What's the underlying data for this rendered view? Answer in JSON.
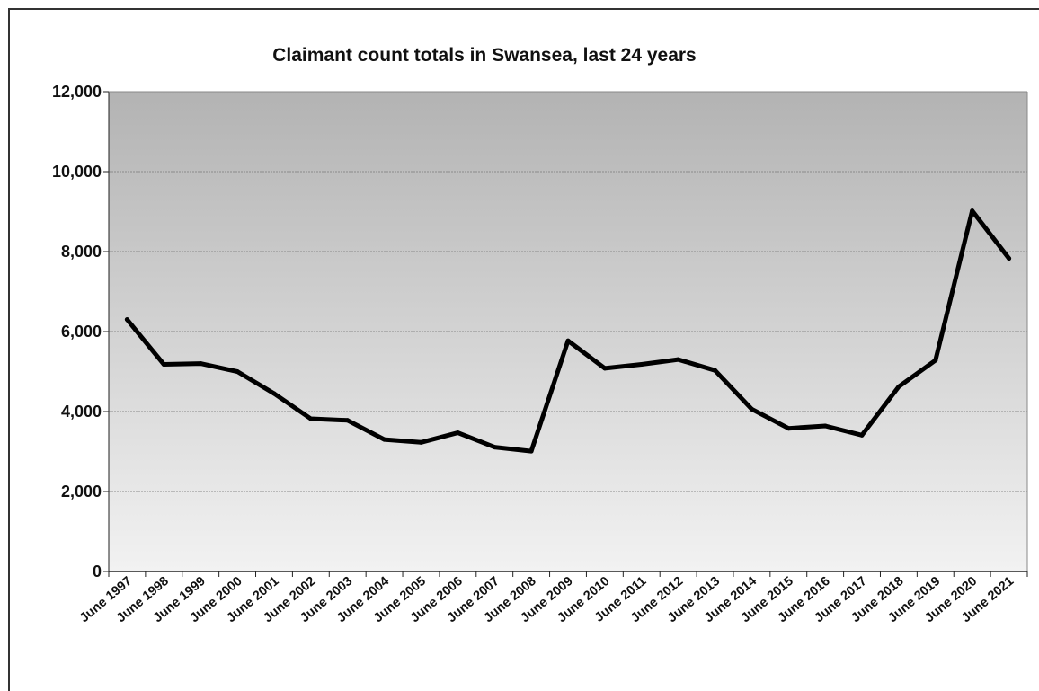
{
  "chart_data": {
    "type": "line",
    "title": "Claimant count totals in Swansea, last 24 years",
    "xlabel": "",
    "ylabel": "",
    "ylim": [
      0,
      12000
    ],
    "yticks": [
      "0",
      "2,000",
      "4,000",
      "6,000",
      "8,000",
      "10,000",
      "12,000"
    ],
    "ytick_values": [
      0,
      2000,
      4000,
      6000,
      8000,
      10000,
      12000
    ],
    "categories": [
      "June 1997",
      "June 1998",
      "June 1999",
      "June 2000",
      "June 2001",
      "June 2002",
      "June 2003",
      "June 2004",
      "June 2005",
      "June 2006",
      "June 2007",
      "June 2008",
      "June 2009",
      "June 2010",
      "June 2011",
      "June 2012",
      "June 2013",
      "June 2014",
      "June 2015",
      "June 2016",
      "June 2017",
      "June 2018",
      "June 2019",
      "June 2020",
      "June 2021"
    ],
    "series": [
      {
        "values": [
          6300,
          5180,
          5200,
          5000,
          4450,
          3820,
          3780,
          3300,
          3230,
          3470,
          3110,
          3010,
          5770,
          5080,
          5180,
          5300,
          5030,
          4060,
          3580,
          3640,
          3410,
          4620,
          5280,
          9020,
          7830
        ]
      }
    ],
    "grid": true,
    "legend": "none",
    "colors": {
      "line": "#000000",
      "plot_top": "#b3b3b3",
      "plot_bottom": "#f2f2f2",
      "grid": "#8a8a8a"
    }
  }
}
